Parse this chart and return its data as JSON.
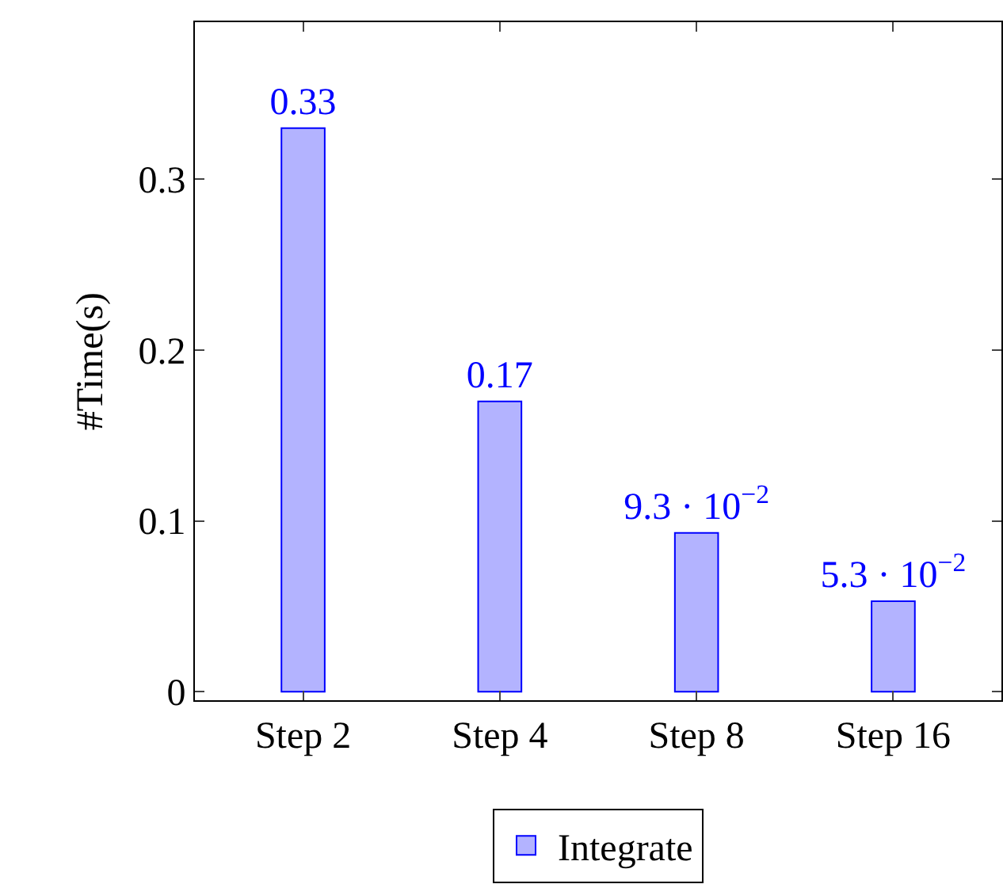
{
  "chart_data": {
    "type": "bar",
    "ylabel": "#Time(s)",
    "categories": [
      "Step 2",
      "Step 4",
      "Step 8",
      "Step 16"
    ],
    "series": [
      {
        "name": "Integrate",
        "color": "#b3b3ff",
        "values": [
          0.33,
          0.17,
          0.093,
          0.053
        ],
        "value_labels": [
          "0.33",
          "0.17",
          "9.3 · 10$^{−2}$",
          "5.3 · 10$^{−2}$"
        ]
      }
    ],
    "ylim": [
      -0.005,
      0.392
    ],
    "yticks": [
      0,
      0.1,
      0.2,
      0.3
    ],
    "legend": "bottom"
  }
}
